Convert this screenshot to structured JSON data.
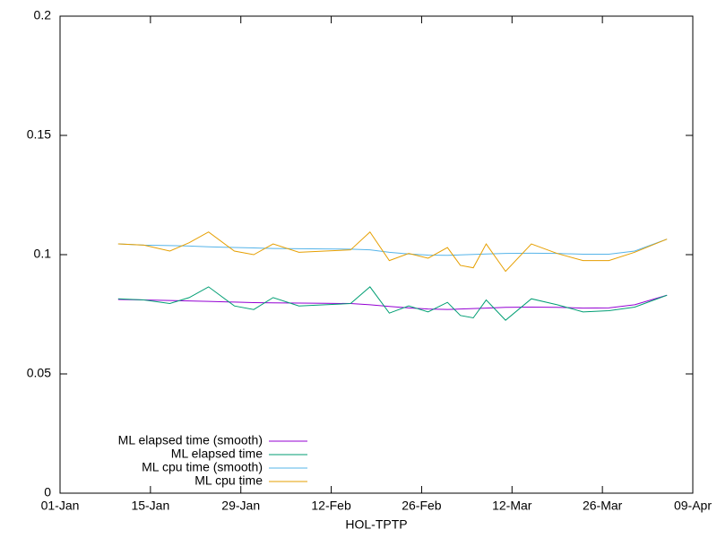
{
  "chart_data": {
    "type": "line",
    "xlabel": "HOL-TPTP",
    "x": [
      "10-Jan",
      "14-Jan",
      "18-Jan",
      "21-Jan",
      "24-Jan",
      "28-Jan",
      "31-Jan",
      "03-Feb",
      "07-Feb",
      "11-Feb",
      "15-Feb",
      "18-Feb",
      "21-Feb",
      "24-Feb",
      "27-Feb",
      "02-Mar",
      "04-Mar",
      "06-Mar",
      "08-Mar",
      "11-Mar",
      "15-Mar",
      "19-Mar",
      "23-Mar",
      "27-Mar",
      "31-Mar",
      "05-Apr"
    ],
    "series": [
      {
        "name": "ML elapsed time (smooth)",
        "color": "#9400d3",
        "values": [
          0.0812,
          0.081,
          0.0808,
          0.0806,
          0.0804,
          0.0801,
          0.0799,
          0.0798,
          0.0797,
          0.0796,
          0.0795,
          0.079,
          0.0783,
          0.0777,
          0.0772,
          0.077,
          0.0772,
          0.0774,
          0.0776,
          0.0779,
          0.078,
          0.0779,
          0.0776,
          0.0777,
          0.079,
          0.083
        ]
      },
      {
        "name": "ML elapsed time",
        "color": "#009e73",
        "values": [
          0.0815,
          0.081,
          0.0795,
          0.082,
          0.0865,
          0.0785,
          0.077,
          0.082,
          0.0785,
          0.079,
          0.0795,
          0.0865,
          0.0755,
          0.0785,
          0.076,
          0.08,
          0.0745,
          0.0735,
          0.081,
          0.0725,
          0.0815,
          0.079,
          0.076,
          0.0765,
          0.078,
          0.083
        ]
      },
      {
        "name": "ML cpu time (smooth)",
        "color": "#56b4e9",
        "values": [
          0.1045,
          0.104,
          0.1038,
          0.1036,
          0.1033,
          0.103,
          0.1028,
          0.1026,
          0.1025,
          0.1024,
          0.1023,
          0.102,
          0.101,
          0.1003,
          0.0998,
          0.0997,
          0.0999,
          0.1001,
          0.1003,
          0.1005,
          0.1006,
          0.1005,
          0.1002,
          0.1002,
          0.1015,
          0.1065
        ]
      },
      {
        "name": "ML cpu time",
        "color": "#e69f00",
        "values": [
          0.1045,
          0.104,
          0.1015,
          0.105,
          0.1095,
          0.1015,
          0.1,
          0.1045,
          0.101,
          0.1015,
          0.102,
          0.1095,
          0.0975,
          0.1005,
          0.0985,
          0.103,
          0.0955,
          0.0945,
          0.1045,
          0.093,
          0.1045,
          0.1005,
          0.0975,
          0.0975,
          0.101,
          0.1065
        ]
      }
    ],
    "xlim": [
      "01-Jan",
      "09-Apr"
    ],
    "xticks": [
      "01-Jan",
      "15-Jan",
      "29-Jan",
      "12-Feb",
      "26-Feb",
      "12-Mar",
      "26-Mar",
      "09-Apr"
    ],
    "ylim": [
      0,
      0.2
    ],
    "yticks": [
      0,
      0.05,
      0.1,
      0.15,
      0.2
    ],
    "legend": "lower-left"
  }
}
